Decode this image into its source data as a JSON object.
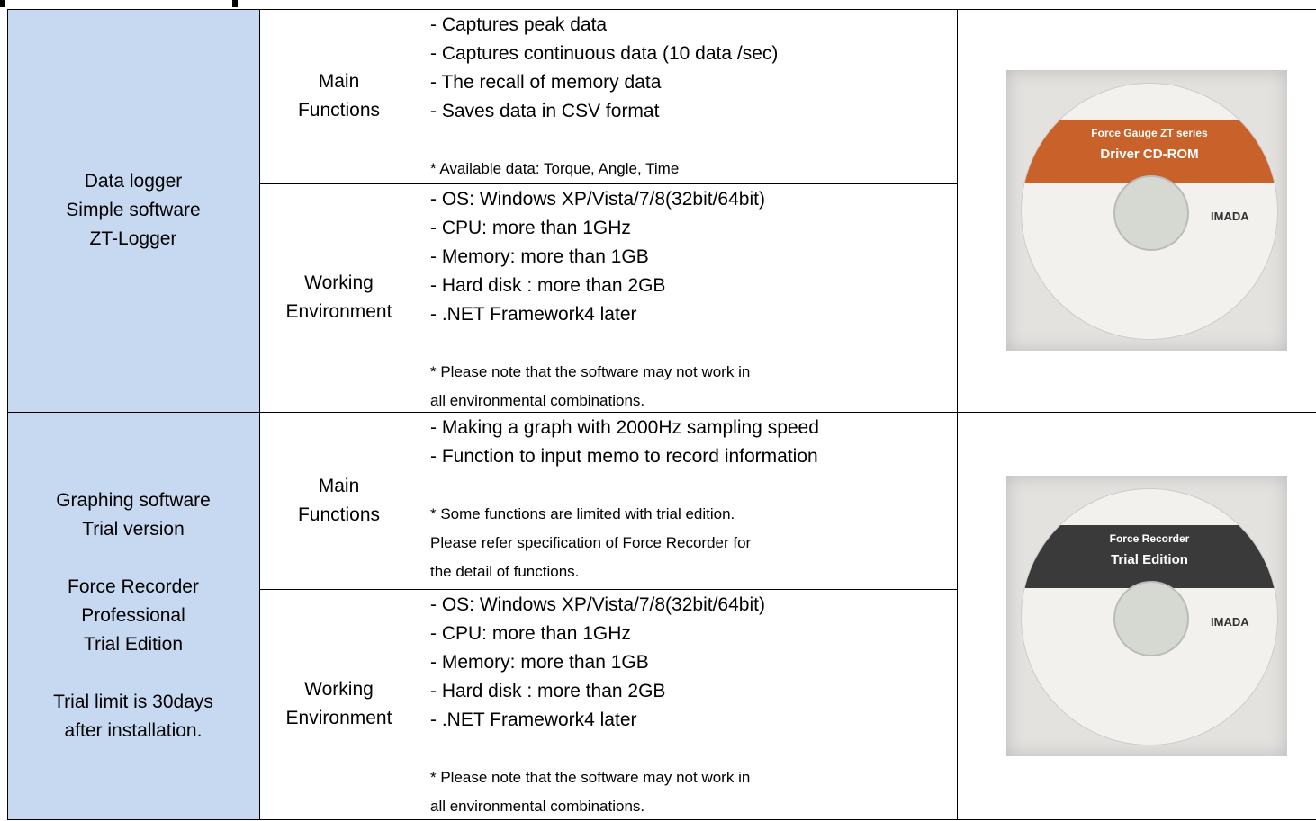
{
  "table": {
    "rows": [
      {
        "name_groups": [
          [
            "Data logger",
            "Simple software",
            "ZT-Logger"
          ]
        ],
        "sections": [
          {
            "label": [
              "Main",
              "Functions"
            ],
            "items": [
              "- Captures peak data",
              "- Captures continuous data (10 data /sec)",
              "- The recall of memory data",
              "- Saves data in CSV format"
            ],
            "notes": [
              "* Available data: Torque, Angle, Time"
            ]
          },
          {
            "label": [
              "Working",
              "Environment"
            ],
            "items": [
              "- OS: Windows XP/Vista/7/8(32bit/64bit)",
              "- CPU: more than 1GHz",
              "- Memory: more than 1GB",
              "- Hard disk : more than 2GB",
              "- .NET Framework4 later"
            ],
            "notes": [
              "* Please note that the software may not work in",
              "all environmental combinations."
            ]
          }
        ],
        "image": {
          "title": [
            "Force Gauge ZT series",
            "Driver CD-ROM"
          ],
          "brand": "IMADA",
          "band": "#c8622a"
        }
      },
      {
        "name_groups": [
          [
            "Graphing software",
            "Trial version"
          ],
          [
            "Force Recorder",
            "Professional",
            "Trial Edition"
          ],
          [
            "Trial limit is 30days",
            "after installation."
          ]
        ],
        "sections": [
          {
            "label": [
              "Main",
              "Functions"
            ],
            "items": [
              "- Making a graph with 2000Hz sampling speed",
              "- Function to input memo to record information"
            ],
            "notes": [
              "* Some functions are limited with trial edition.",
              "Please refer specification of Force Recorder for",
              "the detail of functions."
            ]
          },
          {
            "label": [
              "Working",
              "Environment"
            ],
            "items": [
              "- OS: Windows XP/Vista/7/8(32bit/64bit)",
              "- CPU: more than 1GHz",
              "- Memory: more than 1GB",
              "- Hard disk : more than 2GB",
              "- .NET Framework4 later"
            ],
            "notes": [
              "* Please note that the software may not work in",
              "all environmental combinations."
            ]
          }
        ],
        "image": {
          "title": [
            "Force Recorder",
            "Trial Edition"
          ],
          "brand": "IMADA",
          "band": "#3a3a3a"
        }
      }
    ]
  }
}
